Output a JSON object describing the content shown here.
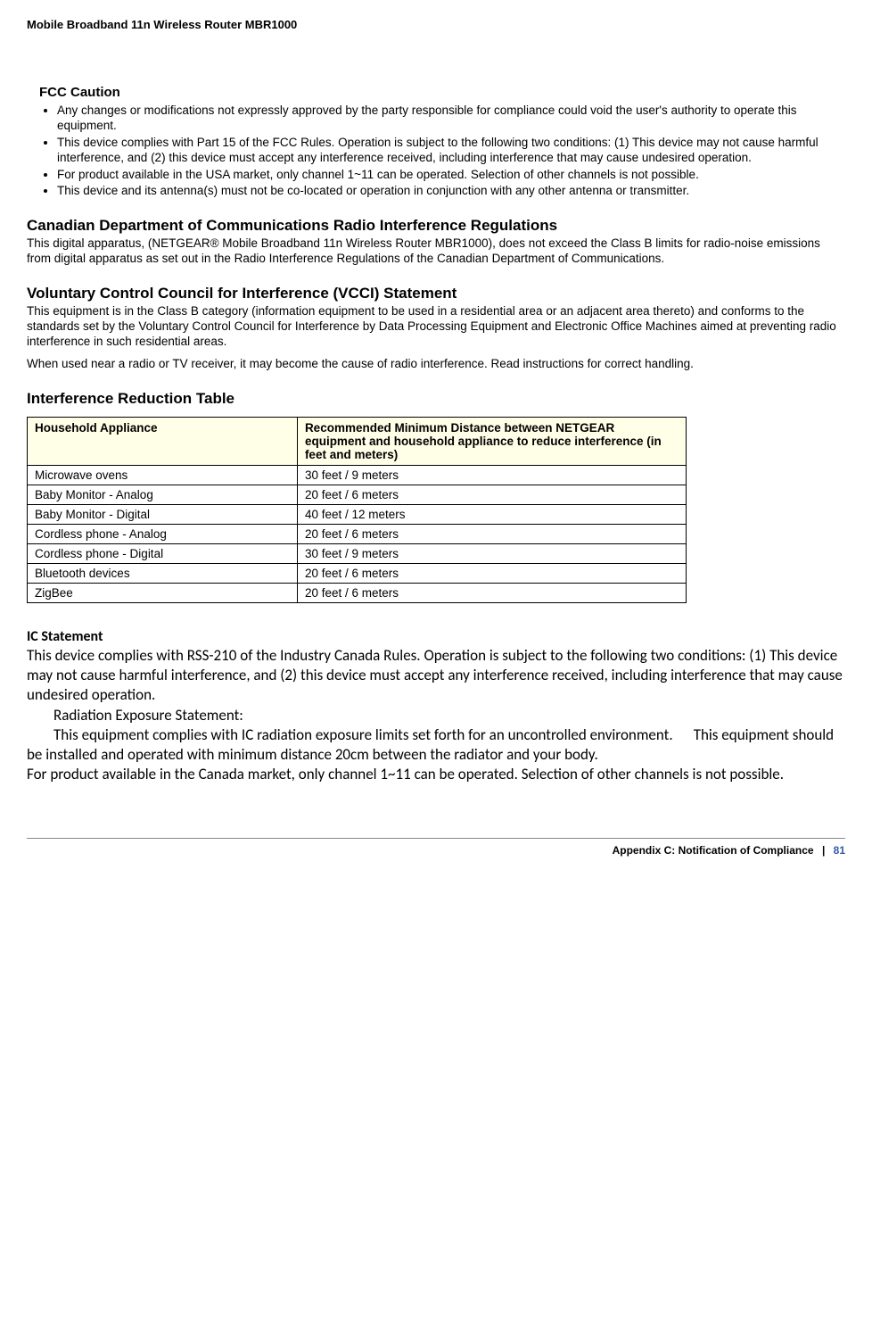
{
  "header": {
    "title": "Mobile Broadband 11n Wireless Router MBR1000"
  },
  "fcc_caution": {
    "heading": "FCC Caution",
    "items": [
      "Any changes or modifications not expressly approved by the party responsible for compliance could void the user's authority to operate this equipment.",
      "This device complies with Part 15 of the FCC Rules. Operation is subject to the following two conditions: (1) This device may not cause harmful interference, and (2) this device must accept any interference received, including interference that may cause undesired operation.",
      "For product available in the USA market, only channel 1~11 can be operated. Selection of other channels is not possible.",
      "This device and its antenna(s) must not be co-located or operation in conjunction with any other antenna or transmitter."
    ]
  },
  "canadian": {
    "heading": "Canadian Department of Communications Radio Interference Regulations",
    "text": "This digital apparatus, (NETGEAR® Mobile Broadband 11n Wireless Router MBR1000), does not exceed the Class B limits for radio-noise emissions from digital apparatus as set out in the Radio Interference Regulations of the Canadian Department of Communications."
  },
  "vcci": {
    "heading": "Voluntary Control Council for Interference (VCCI) Statement",
    "p1": "This equipment is in the Class B category (information equipment to be used in a residential area or an adjacent area thereto) and conforms to the standards set by the Voluntary Control Council for Interference by Data Processing Equipment and Electronic Office Machines aimed at preventing radio interference in such residential areas.",
    "p2": "When used near a radio or TV receiver, it may become the cause of radio interference. Read instructions for correct handling."
  },
  "interference": {
    "heading": "Interference Reduction Table",
    "table": {
      "columns": [
        "Household Appliance",
        "Recommended Minimum Distance between NETGEAR equipment and household appliance to reduce interference (in feet and meters)"
      ],
      "col_widths": [
        "300px",
        "440px"
      ],
      "header_bg": "#ffffe8",
      "border_color": "#000000",
      "rows": [
        [
          "Microwave ovens",
          "30 feet / 9 meters"
        ],
        [
          "Baby Monitor - Analog",
          "20 feet / 6 meters"
        ],
        [
          "Baby Monitor - Digital",
          "40 feet / 12 meters"
        ],
        [
          "Cordless phone - Analog",
          "20 feet / 6 meters"
        ],
        [
          "Cordless phone - Digital",
          "30 feet / 9 meters"
        ],
        [
          "Bluetooth devices",
          "20 feet / 6 meters"
        ],
        [
          "ZigBee",
          "20 feet / 6 meters"
        ]
      ]
    }
  },
  "ic": {
    "heading": "IC Statement",
    "p1": "This device complies with RSS-210 of the Industry Canada Rules. Operation is subject to the following two conditions: (1) This device may not cause harmful interference, and (2) this device must accept any interference received, including interference that may cause undesired operation.",
    "sub_heading": "Radiation Exposure Statement:",
    "p2": "This equipment complies with IC radiation exposure limits set forth for an uncontrolled environment.      This equipment should be installed and operated with minimum distance 20cm between the radiator and your body.",
    "p3": "For product available in the Canada market, only channel 1~11 can be operated. Selection of other channels is not possible."
  },
  "footer": {
    "appendix": "Appendix C:  Notification of Compliance",
    "sep": "|",
    "page": "81"
  }
}
